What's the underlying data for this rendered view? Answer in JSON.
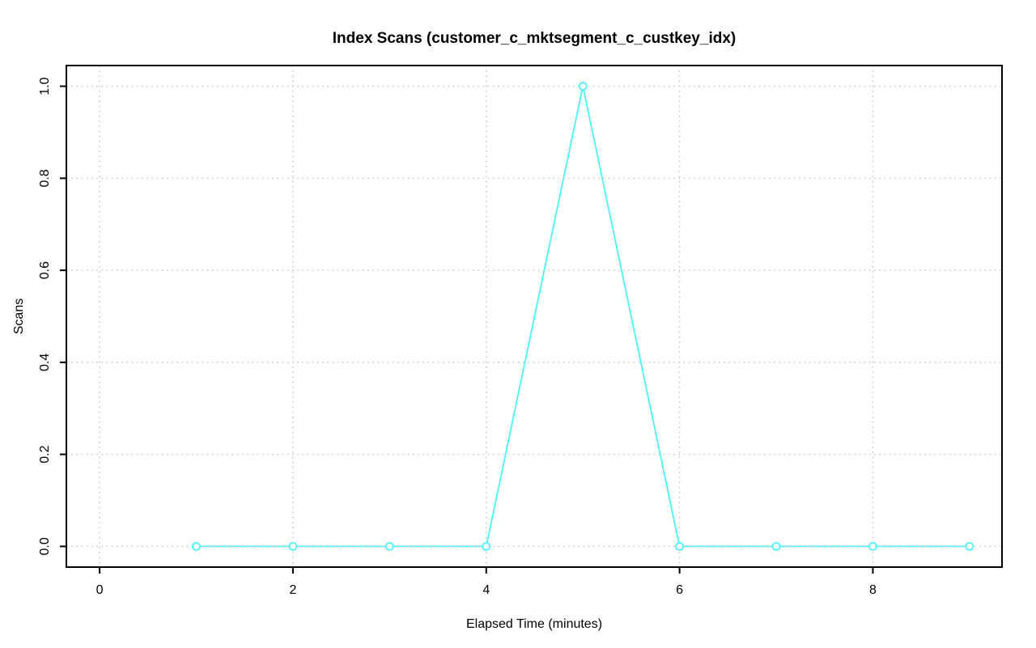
{
  "page": {
    "background": "#FFFFFF"
  },
  "chart_data": {
    "type": "line",
    "title": "Index Scans (customer_c_mktsegment_c_custkey_idx)",
    "xlabel": "Elapsed Time (minutes)",
    "ylabel": "Scans",
    "x": [
      1,
      2,
      3,
      4,
      5,
      6,
      7,
      8,
      9
    ],
    "series": [
      {
        "name": "Index Scans",
        "values": [
          0,
          0,
          0,
          0,
          1,
          0,
          0,
          0,
          0
        ],
        "color": "#4DF2F2",
        "marker": "open-circle",
        "marker_fill": "#FFFFFF",
        "line_style": "solid"
      }
    ],
    "xticks": [
      0,
      2,
      4,
      6,
      8
    ],
    "yticks": {
      "labels": [
        "0.0",
        "0.2",
        "0.4",
        "0.6",
        "0.8",
        "1.0"
      ],
      "values": [
        0,
        0.2,
        0.4,
        0.6,
        0.8,
        1.0
      ]
    },
    "xlim": [
      -0.344,
      9.336
    ],
    "ylim": [
      -0.045,
      1.045
    ],
    "grid": {
      "show": true,
      "line_style": "dotted",
      "color": "#C6C6C6"
    },
    "axis_color": "#000000",
    "text_color": "#000000",
    "legend_position": "none"
  }
}
